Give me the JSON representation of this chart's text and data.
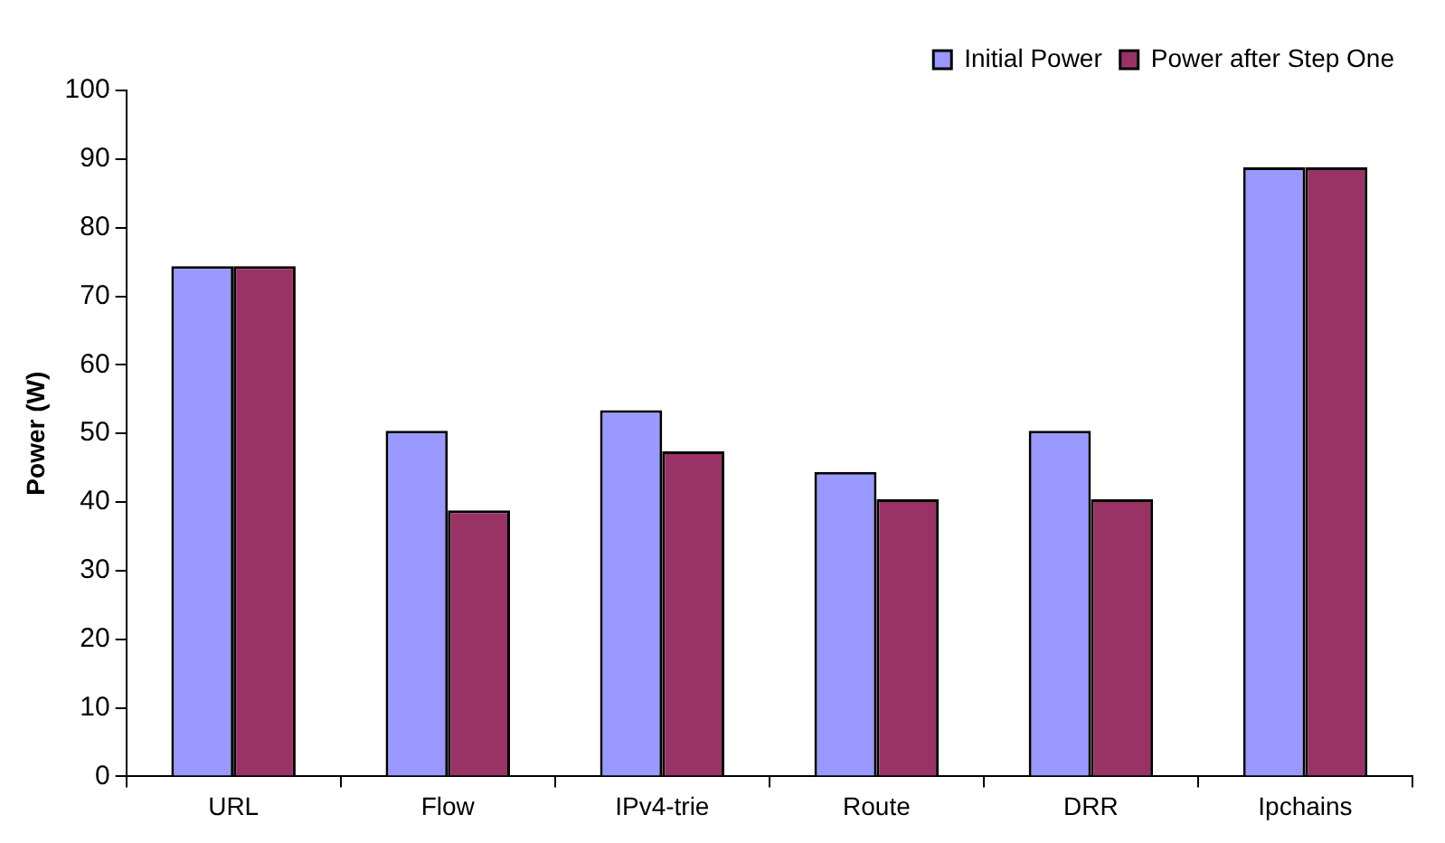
{
  "chart_data": {
    "type": "bar",
    "ylabel": "Power (W)",
    "categories": [
      "URL",
      "Flow",
      "IPv4-trie",
      "Route",
      "DRR",
      "Ipchains"
    ],
    "series": [
      {
        "name": "Initial Power",
        "color": "#9999ff",
        "values": [
          74.4,
          50.4,
          53.4,
          44.4,
          50.4,
          88.8
        ]
      },
      {
        "name": "Power after Step One",
        "color": "#993366",
        "values": [
          74.4,
          38.8,
          47.4,
          40.4,
          40.4,
          88.8
        ]
      }
    ],
    "ylim": [
      0,
      100
    ],
    "yticks": [
      0,
      10,
      20,
      30,
      40,
      50,
      60,
      70,
      80,
      90,
      100
    ],
    "legend": "top right"
  }
}
